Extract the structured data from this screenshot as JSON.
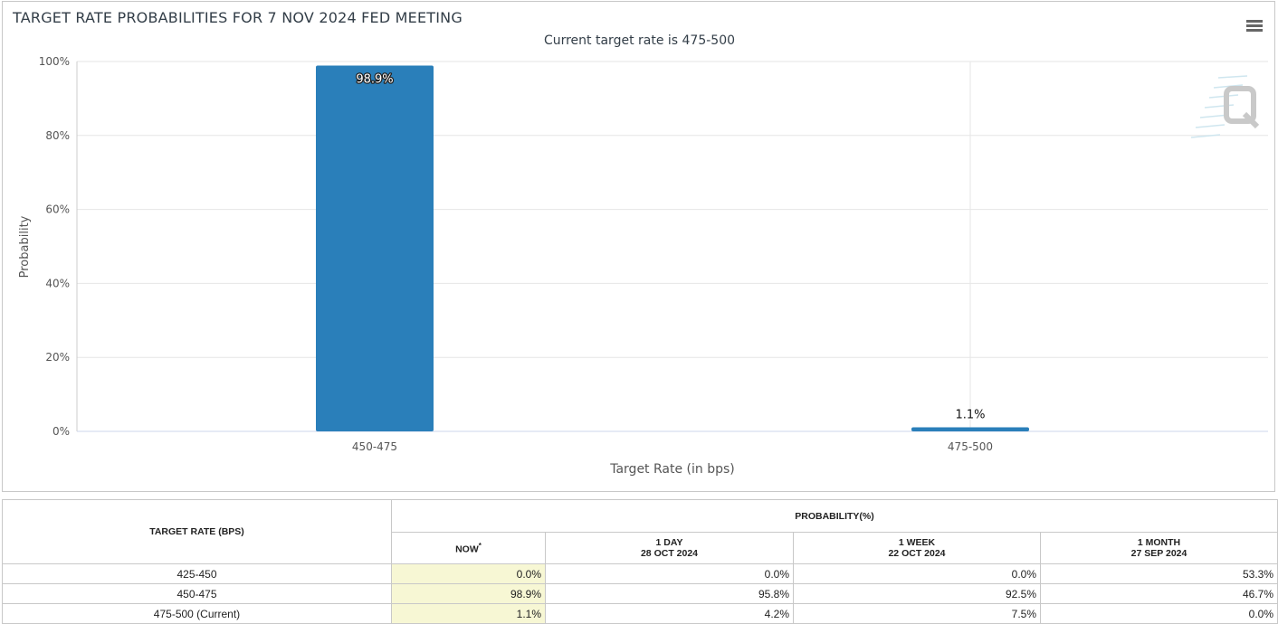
{
  "chart": {
    "title": "TARGET RATE PROBABILITIES FOR 7 NOV 2024 FED MEETING",
    "subtitle": "Current target rate is 475-500",
    "menu_icon": "hamburger-menu-icon",
    "watermark_icon": "q-logo-icon",
    "bar_color": "#2a7fba"
  },
  "chart_data": {
    "type": "bar",
    "title": "TARGET RATE PROBABILITIES FOR 7 NOV 2024 FED MEETING",
    "subtitle": "Current target rate is 475-500",
    "categories": [
      "450-475",
      "475-500"
    ],
    "values": [
      98.9,
      1.1
    ],
    "data_labels": [
      "98.9%",
      "1.1%"
    ],
    "xlabel": "Target Rate (in bps)",
    "ylabel": "Probability",
    "ylim": [
      0,
      100
    ],
    "yticks": [
      "0%",
      "20%",
      "40%",
      "60%",
      "80%",
      "100%"
    ],
    "grid": true,
    "legend": "none"
  },
  "table": {
    "target_rate_header": "TARGET RATE (BPS)",
    "probability_header": "PROBABILITY(%)",
    "now_header": "NOW",
    "now_marker": "*",
    "day_header": "1 DAY",
    "day_date": "28 OCT 2024",
    "week_header": "1 WEEK",
    "week_date": "22 OCT 2024",
    "month_header": "1 MONTH",
    "month_date": "27 SEP 2024",
    "rows": [
      {
        "rate": "425-450",
        "now": "0.0%",
        "day": "0.0%",
        "week": "0.0%",
        "month": "53.3%"
      },
      {
        "rate": "450-475",
        "now": "98.9%",
        "day": "95.8%",
        "week": "92.5%",
        "month": "46.7%"
      },
      {
        "rate": "475-500 (Current)",
        "now": "1.1%",
        "day": "4.2%",
        "week": "7.5%",
        "month": "0.0%"
      }
    ]
  }
}
